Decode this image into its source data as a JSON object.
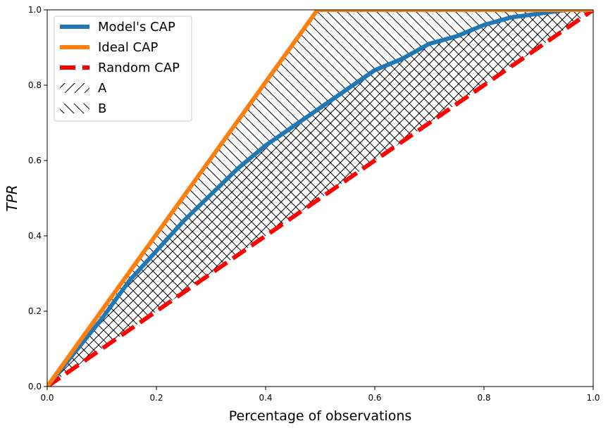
{
  "chart_data": {
    "type": "line",
    "title": "",
    "xlabel": "Percentage of observations",
    "ylabel": "TPR",
    "xlim": [
      0.0,
      1.0
    ],
    "ylim": [
      0.0,
      1.0
    ],
    "grid": false,
    "legend_position": "upper-left",
    "x_ticks": [
      0.0,
      0.2,
      0.4,
      0.6,
      0.8,
      1.0
    ],
    "x_tick_labels": [
      "0.0",
      "0.2",
      "0.4",
      "0.6",
      "0.8",
      "1.0"
    ],
    "y_ticks": [
      0.0,
      0.2,
      0.4,
      0.6,
      0.8,
      1.0
    ],
    "y_tick_labels": [
      "0.0",
      "0.2",
      "0.4",
      "0.6",
      "0.8",
      "1.0"
    ],
    "series": [
      {
        "name": "Model's CAP",
        "color": "#1f77b4",
        "style": "solid",
        "x": [
          0.0,
          0.05,
          0.1,
          0.15,
          0.2,
          0.25,
          0.3,
          0.35,
          0.4,
          0.45,
          0.5,
          0.55,
          0.6,
          0.65,
          0.7,
          0.75,
          0.8,
          0.85,
          0.9,
          0.95,
          1.0
        ],
        "y": [
          0.0,
          0.09,
          0.18,
          0.28,
          0.36,
          0.44,
          0.51,
          0.58,
          0.64,
          0.69,
          0.74,
          0.79,
          0.84,
          0.87,
          0.91,
          0.93,
          0.96,
          0.98,
          0.99,
          1.0,
          1.0
        ]
      },
      {
        "name": "Ideal CAP",
        "color": "#ff7f0e",
        "style": "solid",
        "x": [
          0.0,
          0.495,
          1.0
        ],
        "y": [
          0.0,
          1.0,
          1.0
        ]
      },
      {
        "name": "Random CAP",
        "color": "#ff0000",
        "style": "dashed",
        "x": [
          0.0,
          1.0
        ],
        "y": [
          0.0,
          1.0
        ]
      }
    ],
    "shaded_regions": [
      {
        "name": "A",
        "hatch": "forward-slash",
        "between": [
          "Model's CAP",
          "Random CAP"
        ]
      },
      {
        "name": "B",
        "hatch": "back-slash",
        "between": [
          "Ideal CAP",
          "Random CAP"
        ]
      }
    ],
    "legend": [
      {
        "label": "Model's CAP",
        "kind": "line",
        "color": "#1f77b4",
        "style": "solid"
      },
      {
        "label": "Ideal CAP",
        "kind": "line",
        "color": "#ff7f0e",
        "style": "solid"
      },
      {
        "label": "Random CAP",
        "kind": "line",
        "color": "#ff0000",
        "style": "dashed"
      },
      {
        "label": "A",
        "kind": "hatch",
        "hatch": "forward-slash"
      },
      {
        "label": "B",
        "kind": "hatch",
        "hatch": "back-slash"
      }
    ]
  }
}
